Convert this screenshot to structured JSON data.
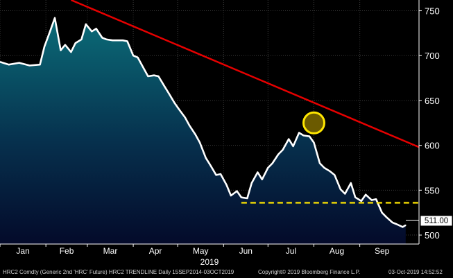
{
  "chart_data": {
    "type": "area",
    "x_tick_labels": [
      "Jan",
      "Feb",
      "Mar",
      "Apr",
      "May",
      "Jun",
      "Jul",
      "Aug",
      "Sep"
    ],
    "year_label": "2019",
    "y_tick_labels": [
      "500",
      "550",
      "600",
      "650",
      "700",
      "750"
    ],
    "ylim": [
      490,
      762
    ],
    "grid": true,
    "series": [
      {
        "values": [
          {
            "x": "2019-01-01",
            "y": 693
          },
          {
            "x": "2019-01-07",
            "y": 690
          },
          {
            "x": "2019-01-14",
            "y": 692
          },
          {
            "x": "2019-01-21",
            "y": 689
          },
          {
            "x": "2019-01-28",
            "y": 690
          },
          {
            "x": "2019-01-31",
            "y": 710
          },
          {
            "x": "2019-02-04",
            "y": 728
          },
          {
            "x": "2019-02-07",
            "y": 742
          },
          {
            "x": "2019-02-11",
            "y": 706
          },
          {
            "x": "2019-02-14",
            "y": 712
          },
          {
            "x": "2019-02-18",
            "y": 704
          },
          {
            "x": "2019-02-21",
            "y": 714
          },
          {
            "x": "2019-02-25",
            "y": 718
          },
          {
            "x": "2019-02-28",
            "y": 735
          },
          {
            "x": "2019-03-04",
            "y": 727
          },
          {
            "x": "2019-03-07",
            "y": 730
          },
          {
            "x": "2019-03-11",
            "y": 720
          },
          {
            "x": "2019-03-14",
            "y": 718
          },
          {
            "x": "2019-03-18",
            "y": 717
          },
          {
            "x": "2019-03-25",
            "y": 717
          },
          {
            "x": "2019-03-28",
            "y": 716
          },
          {
            "x": "2019-04-01",
            "y": 700
          },
          {
            "x": "2019-04-04",
            "y": 698
          },
          {
            "x": "2019-04-08",
            "y": 686
          },
          {
            "x": "2019-04-11",
            "y": 677
          },
          {
            "x": "2019-04-15",
            "y": 678
          },
          {
            "x": "2019-04-18",
            "y": 677
          },
          {
            "x": "2019-04-22",
            "y": 666
          },
          {
            "x": "2019-04-25",
            "y": 658
          },
          {
            "x": "2019-04-29",
            "y": 647
          },
          {
            "x": "2019-05-02",
            "y": 640
          },
          {
            "x": "2019-05-06",
            "y": 631
          },
          {
            "x": "2019-05-09",
            "y": 622
          },
          {
            "x": "2019-05-13",
            "y": 612
          },
          {
            "x": "2019-05-16",
            "y": 603
          },
          {
            "x": "2019-05-20",
            "y": 586
          },
          {
            "x": "2019-05-23",
            "y": 578
          },
          {
            "x": "2019-05-27",
            "y": 567
          },
          {
            "x": "2019-05-30",
            "y": 568
          },
          {
            "x": "2019-06-03",
            "y": 556
          },
          {
            "x": "2019-06-06",
            "y": 544
          },
          {
            "x": "2019-06-10",
            "y": 549
          },
          {
            "x": "2019-06-13",
            "y": 542
          },
          {
            "x": "2019-06-17",
            "y": 541
          },
          {
            "x": "2019-06-20",
            "y": 558
          },
          {
            "x": "2019-06-24",
            "y": 570
          },
          {
            "x": "2019-06-27",
            "y": 562
          },
          {
            "x": "2019-07-01",
            "y": 575
          },
          {
            "x": "2019-07-04",
            "y": 580
          },
          {
            "x": "2019-07-08",
            "y": 590
          },
          {
            "x": "2019-07-11",
            "y": 595
          },
          {
            "x": "2019-07-15",
            "y": 607
          },
          {
            "x": "2019-07-18",
            "y": 599
          },
          {
            "x": "2019-07-22",
            "y": 614
          },
          {
            "x": "2019-07-25",
            "y": 611
          },
          {
            "x": "2019-07-29",
            "y": 610
          },
          {
            "x": "2019-08-01",
            "y": 603
          },
          {
            "x": "2019-08-05",
            "y": 580
          },
          {
            "x": "2019-08-08",
            "y": 575
          },
          {
            "x": "2019-08-12",
            "y": 571
          },
          {
            "x": "2019-08-15",
            "y": 567
          },
          {
            "x": "2019-08-19",
            "y": 551
          },
          {
            "x": "2019-08-22",
            "y": 546
          },
          {
            "x": "2019-08-26",
            "y": 558
          },
          {
            "x": "2019-08-29",
            "y": 542
          },
          {
            "x": "2019-09-02",
            "y": 538
          },
          {
            "x": "2019-09-05",
            "y": 545
          },
          {
            "x": "2019-09-09",
            "y": 539
          },
          {
            "x": "2019-09-12",
            "y": 540
          },
          {
            "x": "2019-09-16",
            "y": 525
          },
          {
            "x": "2019-09-19",
            "y": 520
          },
          {
            "x": "2019-09-23",
            "y": 514
          },
          {
            "x": "2019-09-26",
            "y": 512
          },
          {
            "x": "2019-09-30",
            "y": 509
          },
          {
            "x": "2019-10-02",
            "y": 511
          }
        ]
      }
    ],
    "last_value_label": "511.00",
    "trendline": {
      "start": {
        "x": "2019-02-18",
        "y": 762
      },
      "end": {
        "x": "2019-10-11",
        "y": 598
      }
    },
    "support_line": {
      "y": 536,
      "from": "2019-06-13",
      "to": "2019-10-11"
    },
    "highlight_marker": {
      "x": "2019-08-01",
      "y": 625
    },
    "colors": {
      "background": "#000000",
      "price_line": "#ffffff",
      "area_top": "#0b6c78",
      "area_bottom": "#040a2a",
      "trendline": "#e60000",
      "support_line": "#ffe600",
      "marker_fill": "#6b5a00",
      "marker_stroke": "#ffe600",
      "grid": "#3a3a3a",
      "axis_text": "#ffffff",
      "last_value_box": "#ffffff"
    }
  },
  "footer": {
    "left": "HRC2 Comdty (Generic 2nd 'HRC' Future) HRC2 TRENDLINE  Daily 15SEP2014-03OCT2019",
    "center": "Copyright© 2019 Bloomberg Finance L.P.",
    "right": "03-Oct-2019 14:52:52"
  }
}
